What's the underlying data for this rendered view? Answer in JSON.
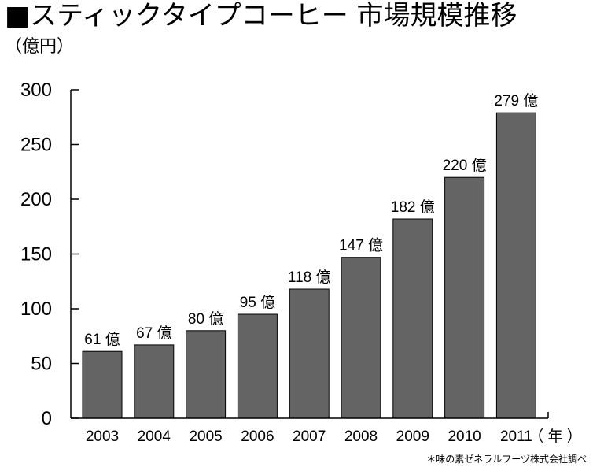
{
  "title": "■スティックタイプコーヒー 市場規模推移",
  "unit_label": "（億円）",
  "year_unit": "（ 年 ）",
  "source": "＊味の素ゼネラルフーヅ株式会社調べ",
  "colors": {
    "bar": "#646464",
    "bar_stroke": "#000000",
    "axis": "#000000",
    "background": "#ffffff"
  },
  "chart_data": {
    "type": "bar",
    "categories": [
      "2003",
      "2004",
      "2005",
      "2006",
      "2007",
      "2008",
      "2009",
      "2010",
      "2011"
    ],
    "values": [
      61,
      67,
      80,
      95,
      118,
      147,
      182,
      220,
      279
    ],
    "data_labels": [
      "61 億",
      "67 億",
      "80 億",
      "95 億",
      "118 億",
      "147 億",
      "182 億",
      "220 億",
      "279 億"
    ],
    "yticks": [
      "0",
      "50",
      "100",
      "150",
      "200",
      "250",
      "300"
    ],
    "ylim": [
      0,
      300
    ],
    "grid": false,
    "legend": "none"
  }
}
